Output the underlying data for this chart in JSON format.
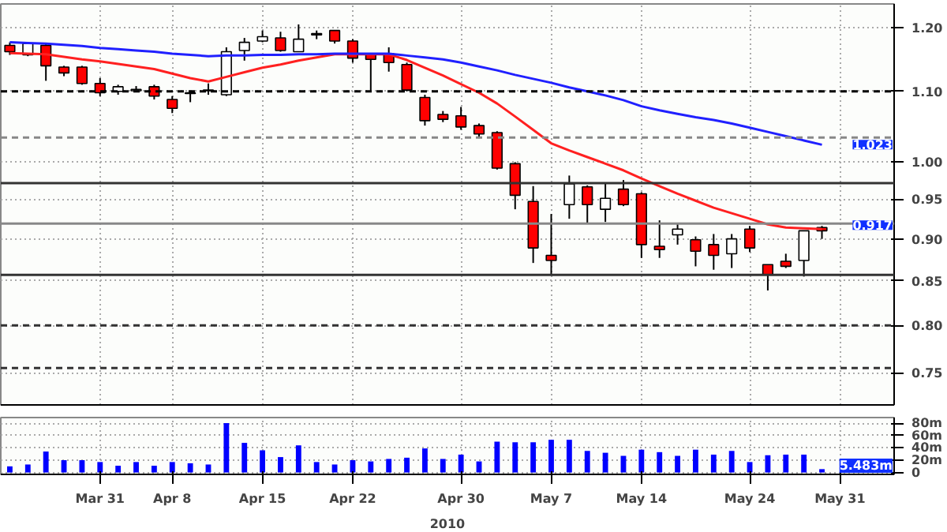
{
  "chart_data": [
    {
      "type": "candlestick",
      "categories": [
        null,
        null,
        null,
        null,
        null,
        null,
        null,
        null,
        null,
        null,
        null,
        null,
        null,
        null,
        null,
        null,
        null,
        null,
        null,
        null,
        null,
        null,
        null,
        null,
        null,
        null,
        null,
        null,
        null,
        null,
        null,
        null,
        null,
        null,
        null,
        null,
        null,
        null,
        null,
        null,
        null,
        null,
        null,
        null,
        null,
        null,
        null
      ],
      "ohlc": [
        [
          1.171,
          1.176,
          1.156,
          1.161
        ],
        [
          1.156,
          1.176,
          1.154,
          1.174
        ],
        [
          1.171,
          1.174,
          1.116,
          1.139
        ],
        [
          1.137,
          1.139,
          1.123,
          1.128
        ],
        [
          1.137,
          1.139,
          1.11,
          1.112
        ],
        [
          1.112,
          1.12,
          1.093,
          1.098
        ],
        [
          1.1,
          1.11,
          1.095,
          1.107
        ],
        [
          1.101,
          1.108,
          1.1,
          1.103
        ],
        [
          1.107,
          1.11,
          1.088,
          1.093
        ],
        [
          1.088,
          1.093,
          1.068,
          1.075
        ],
        [
          1.097,
          1.1,
          1.084,
          1.098
        ],
        [
          1.101,
          1.112,
          1.095,
          1.102
        ],
        [
          1.095,
          1.168,
          1.093,
          1.161
        ],
        [
          1.163,
          1.183,
          1.147,
          1.176
        ],
        [
          1.178,
          1.195,
          1.176,
          1.185
        ],
        [
          1.183,
          1.193,
          1.161,
          1.163
        ],
        [
          1.161,
          1.205,
          1.161,
          1.181
        ],
        [
          1.19,
          1.195,
          1.181,
          1.188
        ],
        [
          1.195,
          1.195,
          1.174,
          1.178
        ],
        [
          1.178,
          1.181,
          1.144,
          1.151
        ],
        [
          1.158,
          1.158,
          1.1,
          1.149
        ],
        [
          1.158,
          1.168,
          1.13,
          1.144
        ],
        [
          1.141,
          1.144,
          1.1,
          1.102
        ],
        [
          1.091,
          1.095,
          1.05,
          1.057
        ],
        [
          1.066,
          1.071,
          1.055,
          1.059
        ],
        [
          1.064,
          1.077,
          1.044,
          1.048
        ],
        [
          1.05,
          1.053,
          1.033,
          1.038
        ],
        [
          1.04,
          1.042,
          0.989,
          0.991
        ],
        [
          0.997,
          0.999,
          0.937,
          0.955
        ],
        [
          0.947,
          0.967,
          0.871,
          0.889
        ],
        [
          0.88,
          0.931,
          0.858,
          0.874
        ],
        [
          0.943,
          0.981,
          0.925,
          0.97
        ],
        [
          0.966,
          0.968,
          0.92,
          0.943
        ],
        [
          0.937,
          0.971,
          0.921,
          0.951
        ],
        [
          0.963,
          0.975,
          0.941,
          0.943
        ],
        [
          0.957,
          0.959,
          0.877,
          0.893
        ],
        [
          0.891,
          0.923,
          0.877,
          0.887
        ],
        [
          0.905,
          0.919,
          0.893,
          0.912
        ],
        [
          0.899,
          0.903,
          0.867,
          0.885
        ],
        [
          0.893,
          0.906,
          0.863,
          0.88
        ],
        [
          0.882,
          0.906,
          0.865,
          0.9
        ],
        [
          0.912,
          0.916,
          0.884,
          0.889
        ],
        [
          0.869,
          0.869,
          0.839,
          0.857
        ],
        [
          0.873,
          0.882,
          0.865,
          0.867
        ],
        [
          0.874,
          0.91,
          0.855,
          0.91
        ],
        [
          0.914,
          0.916,
          0.9,
          0.91
        ],
        null
      ],
      "colors": [
        "#ff0000",
        "#ffffff",
        "#ff0000",
        "#ff0000",
        "#ff0000",
        "#ff0000",
        "#ffffff",
        "#ffffff",
        "#ff0000",
        "#ff0000",
        "#ffffff",
        "#ffffff",
        "#ffffff",
        "#ffffff",
        "#ffffff",
        "#ff0000",
        "#ffffff",
        "#ff0000",
        "#ff0000",
        "#ff0000",
        "#ff0000",
        "#ff0000",
        "#ff0000",
        "#ff0000",
        "#ff0000",
        "#ff0000",
        "#ff0000",
        "#ff0000",
        "#ff0000",
        "#ff0000",
        "#ff0000",
        "#ffffff",
        "#ff0000",
        "#ffffff",
        "#ff0000",
        "#ff0000",
        "#ff0000",
        "#ffffff",
        "#ff0000",
        "#ff0000",
        "#ffffff",
        "#ff0000",
        "#ff0000",
        "#ff0000",
        "#ffffff",
        "#ff0000",
        null
      ],
      "series": [
        {
          "type": "line",
          "color": "#ff2020",
          "values": [
            1.159,
            1.158,
            1.157,
            1.153,
            1.149,
            1.146,
            1.142,
            1.138,
            1.134,
            1.127,
            1.12,
            1.115,
            1.122,
            1.129,
            1.136,
            1.141,
            1.147,
            1.152,
            1.157,
            1.157,
            1.157,
            1.157,
            1.148,
            1.136,
            1.124,
            1.111,
            1.098,
            1.082,
            1.063,
            1.044,
            1.025,
            1.015,
            1.006,
            0.997,
            0.988,
            0.977,
            0.967,
            0.957,
            0.948,
            0.939,
            0.932,
            0.925,
            0.918,
            0.914,
            0.913,
            0.912,
            null
          ]
        },
        {
          "type": "line",
          "color": "#2020ff",
          "values": [
            1.176,
            1.175,
            1.174,
            1.172,
            1.17,
            1.167,
            1.165,
            1.163,
            1.161,
            1.158,
            1.156,
            1.154,
            1.155,
            1.155,
            1.156,
            1.156,
            1.157,
            1.157,
            1.158,
            1.158,
            1.158,
            1.158,
            1.155,
            1.152,
            1.149,
            1.144,
            1.138,
            1.132,
            1.125,
            1.119,
            1.113,
            1.106,
            1.1,
            1.094,
            1.087,
            1.078,
            1.072,
            1.067,
            1.062,
            1.058,
            1.053,
            1.047,
            1.041,
            1.035,
            1.029,
            1.023,
            null
          ]
        }
      ],
      "ylim": [
        0.718,
        1.239
      ],
      "log": "y",
      "yticks": [
        {
          "value": 1.2,
          "label": "1.20"
        },
        {
          "value": 1.1,
          "label": "1.10"
        },
        {
          "value": 1.0,
          "label": "1.00"
        },
        0.95,
        {
          "value": 0.9,
          "label": "0.90"
        },
        0.85,
        {
          "value": 0.8,
          "label": "0.80"
        },
        0.75
      ],
      "tick_labels": "y",
      "grid": true,
      "ref_lines": [
        {
          "axis": "y",
          "value": 1.1,
          "color": "#000000",
          "line_style": "dashed"
        },
        {
          "axis": "y",
          "value": 1.033,
          "color": "#888888",
          "line_style": "dashed"
        },
        {
          "axis": "y",
          "value": 0.971,
          "color": "#333333",
          "line_style": "solid"
        },
        {
          "axis": "y",
          "value": 0.919,
          "color": "#888888",
          "line_style": "solid"
        },
        {
          "axis": "y",
          "value": 0.857,
          "color": "#333333",
          "line_style": "solid"
        },
        {
          "axis": "y",
          "value": 0.8,
          "color": "#333333",
          "line_style": "dashed"
        },
        {
          "axis": "y",
          "value": 0.755,
          "color": "#333333",
          "line_style": "dashed"
        }
      ],
      "annotations": [
        {
          "text": "1.023",
          "y": 1.023
        },
        {
          "text": "0.917",
          "y": 0.917
        }
      ]
    },
    {
      "type": "bar",
      "categories": [
        null,
        null,
        null,
        null,
        null,
        "Mar 31",
        null,
        null,
        null,
        "Apr 8",
        null,
        null,
        null,
        null,
        "Apr 15",
        null,
        null,
        null,
        null,
        "Apr 22",
        null,
        null,
        null,
        null,
        null,
        "Apr 30",
        null,
        null,
        null,
        null,
        "May 7",
        null,
        null,
        null,
        null,
        "May 14",
        null,
        null,
        null,
        null,
        null,
        "May 24",
        null,
        null,
        null,
        null,
        "May 31"
      ],
      "values": [
        10,
        13,
        34,
        20,
        20,
        17,
        11,
        17,
        11,
        17,
        15,
        13,
        80,
        48,
        36,
        25,
        44,
        17,
        13,
        20,
        18,
        22,
        24,
        39,
        22,
        29,
        18,
        50,
        49,
        49,
        53,
        53,
        35,
        32,
        27,
        37,
        33,
        27,
        37,
        29,
        35,
        17,
        28,
        29,
        29,
        5.483,
        null
      ],
      "color": "#0000ff",
      "xlabel": "2010",
      "ylim": [
        -3,
        89
      ],
      "yticks": [
        0,
        {
          "value": 20,
          "label": "20m"
        },
        {
          "value": 40,
          "label": "40m"
        },
        {
          "value": 60,
          "label": "60m"
        },
        {
          "value": 80,
          "label": "80m"
        }
      ],
      "grid": true,
      "annotations": [
        "5.483m"
      ]
    }
  ]
}
